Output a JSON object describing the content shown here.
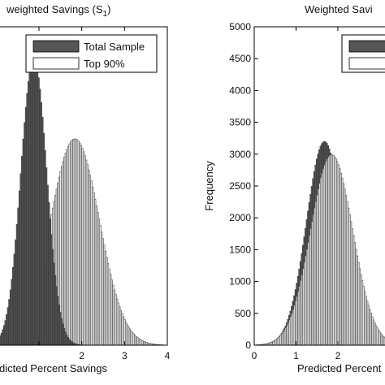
{
  "chart_data": [
    {
      "type": "bar",
      "title": "weighted Savings (S",
      "title_subscript": "1",
      "title_close": ")",
      "xlabel": "dicted Percent Savings",
      "ylabel": "",
      "xlim": [
        -0.1,
        4
      ],
      "ylim": [
        0,
        5000
      ],
      "xticks": [
        1,
        2,
        3,
        4
      ],
      "xtick_labels": [
        "",
        "2",
        "3",
        "4"
      ],
      "yticks": [],
      "grid": false,
      "legend_position": "top-right",
      "series": [
        {
          "name": "Total Sample",
          "color": "#555555",
          "fill": "dark",
          "mean": 0.88,
          "sd": 0.3,
          "peak": 4520
        },
        {
          "name": "Top 90%",
          "color": "#ffffff",
          "fill": "light",
          "mean": 1.84,
          "sd": 0.57,
          "peak": 3240
        }
      ]
    },
    {
      "type": "bar",
      "title": "Weighted Savi",
      "xlabel": "Predicted Percent",
      "ylabel": "Frequency",
      "xlim": [
        0,
        3.4
      ],
      "ylim": [
        0,
        5000
      ],
      "xticks": [
        0,
        1,
        2
      ],
      "xtick_labels": [
        "0",
        "1",
        "2"
      ],
      "yticks": [
        0,
        500,
        1000,
        1500,
        2000,
        2500,
        3000,
        3500,
        4000,
        4500,
        5000
      ],
      "ytick_labels": [
        "0",
        "500",
        "1000",
        "1500",
        "2000",
        "2500",
        "3000",
        "3500",
        "4000",
        "4500",
        "5000"
      ],
      "grid": false,
      "legend_position": "top-right",
      "series": [
        {
          "name": "",
          "color": "#555555",
          "fill": "dark",
          "mean": 1.68,
          "sd": 0.43,
          "peak": 3200
        },
        {
          "name": "",
          "color": "#ffffff",
          "fill": "light",
          "mean": 1.85,
          "sd": 0.5,
          "peak": 2990
        }
      ]
    }
  ]
}
